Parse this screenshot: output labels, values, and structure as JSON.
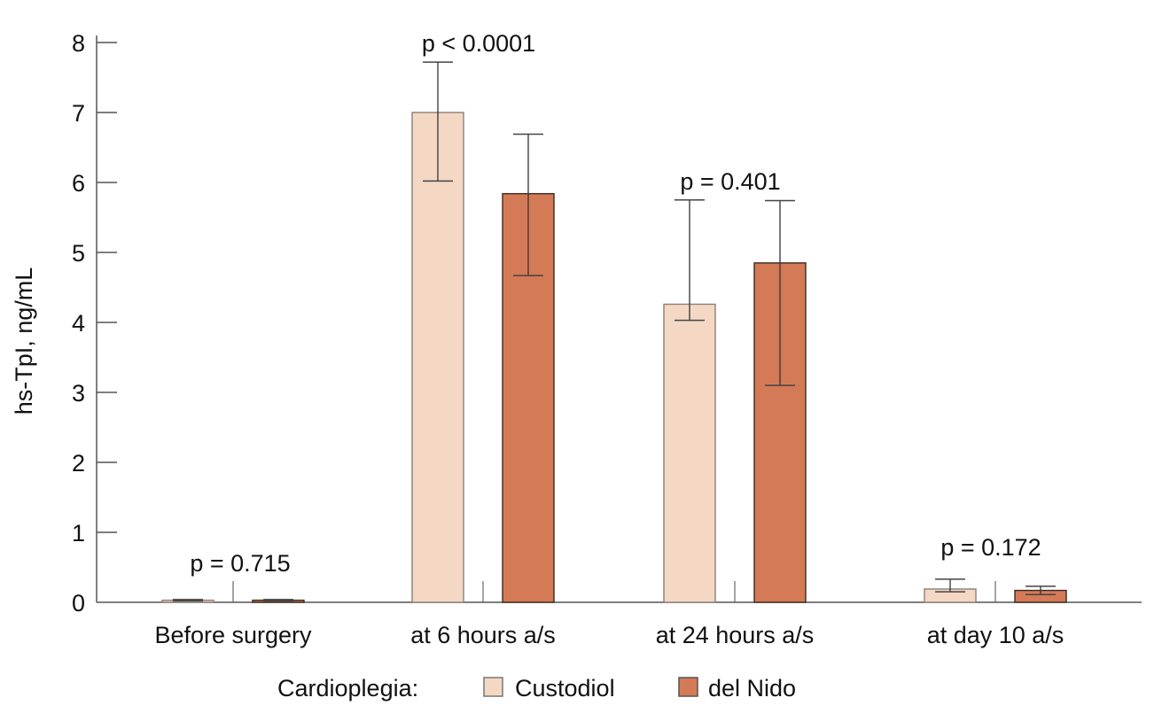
{
  "chart_data": {
    "type": "bar",
    "title": "",
    "xlabel": "",
    "ylabel": "hs-TpI, ng/mL",
    "ylim": [
      0,
      8
    ],
    "yticks": [
      0,
      1,
      2,
      3,
      4,
      5,
      6,
      7,
      8
    ],
    "grid": false,
    "categories": [
      "Before surgery",
      "at 6 hours a/s",
      "at 24 hours a/s",
      "at day 10 a/s"
    ],
    "series": [
      {
        "name": "Custodiol",
        "color": "#f4d8c4",
        "values": [
          0.03,
          7.0,
          4.26,
          0.19
        ],
        "error_low": [
          0.02,
          6.02,
          4.03,
          0.15
        ],
        "error_high": [
          0.04,
          7.72,
          5.75,
          0.33
        ]
      },
      {
        "name": "del Nido",
        "color": "#d47a56",
        "values": [
          0.03,
          5.84,
          4.85,
          0.17
        ],
        "error_low": [
          0.02,
          4.67,
          3.1,
          0.11
        ],
        "error_high": [
          0.04,
          6.69,
          5.74,
          0.23
        ]
      }
    ],
    "annotations": [
      "p = 0.715",
      "p < 0.0001",
      "p = 0.401",
      "p = 0.172"
    ],
    "legend": {
      "title": "Cardioplegia:",
      "placement": "bottom-center",
      "entries": [
        "Custodiol",
        "del Nido"
      ]
    }
  }
}
